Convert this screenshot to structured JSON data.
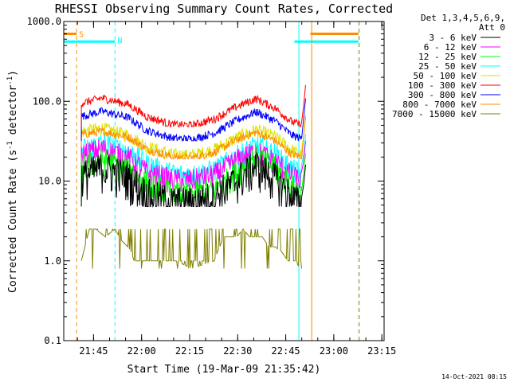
{
  "chart_data": {
    "type": "line",
    "title": "RHESSI Observing Summary Count Rates, Corrected",
    "xlabel": "Start Time (19-Mar-09 21:35:42)",
    "ylabel_main": "Corrected Count Rate (s",
    "ylabel_sup1": "-1",
    "ylabel_mid": " detector",
    "ylabel_sup2": "-1",
    "ylabel_end": ")",
    "y_scale": "log",
    "ylim": [
      0.1,
      1000
    ],
    "x_units": "minutes since 21:35:42",
    "xlim": [
      0,
      100
    ],
    "ytick_labels": [
      "0.1",
      "1.0",
      "10.0",
      "100.0",
      "1000.0"
    ],
    "ytick_values": [
      0.1,
      1,
      10,
      100,
      1000
    ],
    "xtick_labels": [
      "21:45",
      "22:00",
      "22:15",
      "22:30",
      "22:45",
      "23:00",
      "23:15"
    ],
    "xtick_values": [
      9.3,
      24.3,
      39.3,
      54.3,
      69.3,
      84.3,
      99.3
    ],
    "legend": {
      "header_line1": "Det 1,3,4,5,6,9,",
      "header_line2": "Att 0",
      "placement": "top-right"
    },
    "series": [
      {
        "name": "3 - 6 keV",
        "color": "#000000",
        "base": 4.8,
        "jitter": 0.55,
        "start": 5.5,
        "end": 74.3,
        "x": [
          5.5,
          12,
          20,
          26,
          34,
          40,
          47,
          54,
          60,
          66,
          71,
          74.3
        ],
        "y": [
          11.5,
          15.0,
          11.5,
          7.0,
          5.5,
          5.5,
          6.5,
          10.5,
          16.0,
          11.0,
          6.5,
          5.0
        ]
      },
      {
        "name": "6 - 12 keV",
        "color": "#ff00ff",
        "base": 6.3,
        "jitter": 0.35,
        "start": 5.5,
        "end": 74.3,
        "x": [
          5.5,
          12,
          20,
          26,
          34,
          40,
          47,
          54,
          60,
          66,
          71,
          74.3
        ],
        "y": [
          22.0,
          26.0,
          20.0,
          13.0,
          10.5,
          10.5,
          12.0,
          18.5,
          24.0,
          18.0,
          12.0,
          10.0
        ]
      },
      {
        "name": "12 - 25 keV",
        "color": "#00ff00",
        "base": 5.5,
        "jitter": 0.4,
        "start": 5.5,
        "end": 74.3,
        "x": [
          5.5,
          12,
          20,
          26,
          34,
          40,
          47,
          54,
          60,
          66,
          71,
          74.3
        ],
        "y": [
          15.0,
          19.0,
          14.5,
          9.5,
          7.0,
          6.8,
          8.0,
          13.0,
          21.0,
          14.5,
          9.0,
          7.0
        ]
      },
      {
        "name": "25 - 50 keV",
        "color": "#00ffff",
        "base": 8.0,
        "jitter": 0.35,
        "start": 5.5,
        "end": 74.3,
        "x": [
          5.5,
          12,
          20,
          26,
          34,
          40,
          47,
          54,
          60,
          66,
          71,
          74.3
        ],
        "y": [
          25.0,
          30.0,
          24.0,
          16.5,
          12.5,
          12.0,
          14.0,
          21.0,
          28.0,
          22.0,
          14.5,
          12.0
        ]
      },
      {
        "name": "50 - 100 keV",
        "color": "#e0e000",
        "base": 20.0,
        "jitter": 0.2,
        "start": 5.5,
        "end": 74.3,
        "x": [
          5.5,
          12,
          20,
          26,
          34,
          40,
          47,
          54,
          60,
          66,
          71,
          74.3
        ],
        "y": [
          42.0,
          46.0,
          38.0,
          27.0,
          21.5,
          21.0,
          25.0,
          35.0,
          44.0,
          36.0,
          25.0,
          21.0
        ]
      },
      {
        "name": "100 - 300 keV",
        "color": "#ff0000",
        "base": 48.0,
        "jitter": 0.12,
        "start": 5.5,
        "end": 74.3,
        "x": [
          5.5,
          12,
          20,
          26,
          34,
          40,
          47,
          54,
          60,
          66,
          71,
          74.3
        ],
        "y": [
          95.0,
          110.0,
          92.0,
          64.0,
          51.0,
          50.0,
          60.0,
          86.0,
          108.0,
          82.0,
          56.0,
          50.0
        ]
      },
      {
        "name": "300 - 800 keV",
        "color": "#0000ff",
        "base": 32.0,
        "jitter": 0.12,
        "start": 5.5,
        "end": 74.3,
        "x": [
          5.5,
          12,
          20,
          26,
          34,
          40,
          47,
          54,
          60,
          66,
          71,
          74.3
        ],
        "y": [
          65.0,
          75.0,
          63.0,
          43.0,
          34.5,
          33.5,
          40.0,
          58.0,
          74.0,
          57.0,
          38.0,
          34.0
        ]
      },
      {
        "name": "800 - 7000 keV",
        "color": "#ff8c00",
        "base": 19.0,
        "jitter": 0.12,
        "start": 5.5,
        "end": 74.3,
        "x": [
          5.5,
          12,
          20,
          26,
          34,
          40,
          47,
          54,
          60,
          66,
          71,
          74.3
        ],
        "y": [
          38.0,
          42.0,
          36.0,
          25.0,
          20.0,
          19.5,
          23.0,
          33.0,
          41.0,
          32.0,
          22.0,
          20.0
        ]
      },
      {
        "name": "7000 - 15000 keV",
        "color": "#808000",
        "base": 1.0,
        "jitter": 0.0,
        "start": 5.5,
        "end": 74.3,
        "x": [
          5.5,
          8,
          10,
          13,
          16,
          18,
          20,
          21,
          22,
          24,
          28,
          35,
          40,
          47,
          48,
          50,
          52,
          54,
          56,
          58,
          60,
          62,
          64,
          66,
          68,
          70,
          72,
          74
        ],
        "y": [
          1.0,
          2.5,
          2.5,
          2.0,
          2.5,
          1.8,
          1.5,
          1.3,
          1.0,
          1.0,
          1.0,
          1.0,
          0.8,
          1.0,
          1.3,
          2.0,
          2.0,
          2.0,
          2.5,
          2.0,
          2.0,
          2.0,
          1.5,
          1.5,
          1.3,
          1.0,
          1.0,
          0.8
        ]
      }
    ],
    "flags": {
      "S_label": "S",
      "N_label": "N",
      "saa_segments": [
        [
          0,
          4
        ],
        [
          77,
          92
        ]
      ],
      "night_segments": [
        [
          0,
          16
        ],
        [
          72,
          92
        ]
      ],
      "saa_level": 700,
      "night_level": 560
    },
    "vlines": [
      {
        "x": 0,
        "color": "#00ffff",
        "style": "solid"
      },
      {
        "x": 4,
        "color": "#ff8c00",
        "style": "dashed"
      },
      {
        "x": 16,
        "color": "#00ffff",
        "style": "dashed"
      },
      {
        "x": 73.4,
        "color": "#00ffff",
        "style": "solid"
      },
      {
        "x": 77.4,
        "color": "#ff8c00",
        "style": "solid"
      },
      {
        "x": 92.1,
        "color": "#ff8c00",
        "style": "dashed"
      },
      {
        "x": 92.3,
        "color": "#00ffff",
        "style": "dashed"
      }
    ],
    "timestamp": "14-Oct-2021 08:15"
  }
}
